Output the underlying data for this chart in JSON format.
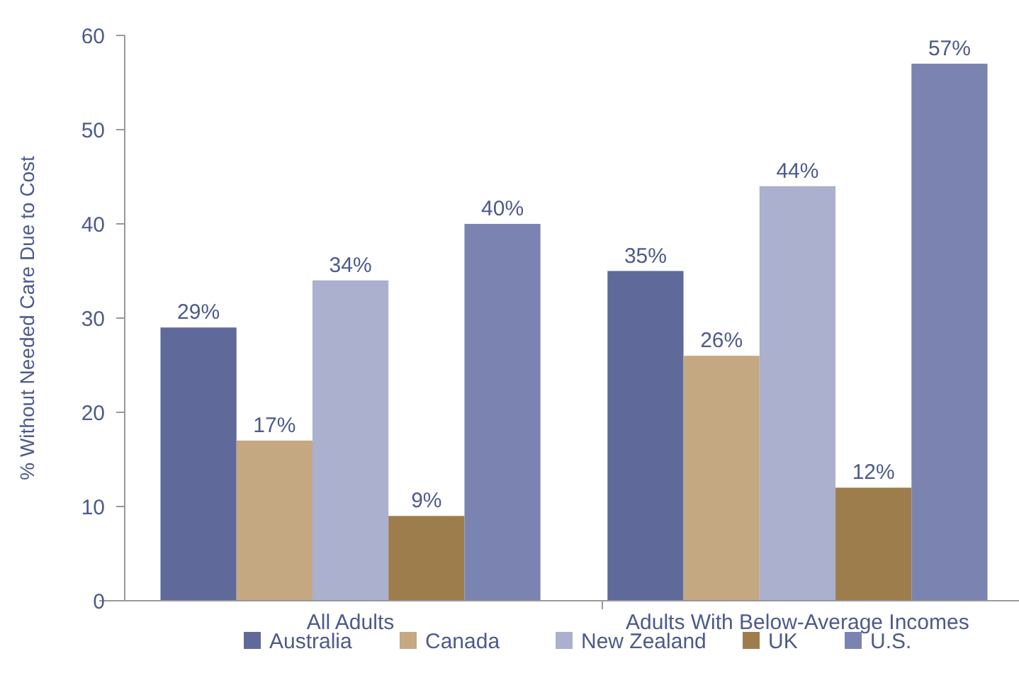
{
  "chart_data": {
    "type": "bar",
    "ylabel": "% Without Needed Care Due to Cost",
    "categories": [
      "All Adults",
      "Adults With Below-Average Incomes"
    ],
    "ylim": [
      0,
      60
    ],
    "yticks": [
      0,
      10,
      20,
      30,
      40,
      50,
      60
    ],
    "legend": "bottom",
    "grid": false,
    "series": [
      {
        "name": "Australia",
        "color": "#5f6a9b",
        "values": [
          29,
          35
        ],
        "value_labels": [
          "29%",
          "35%"
        ]
      },
      {
        "name": "Canada",
        "color": "#c4a882",
        "values": [
          17,
          26
        ],
        "value_labels": [
          "17%",
          "26%"
        ]
      },
      {
        "name": "New Zealand",
        "color": "#aab0cd",
        "values": [
          34,
          44
        ],
        "value_labels": [
          "34%",
          "44%"
        ]
      },
      {
        "name": "UK",
        "color": "#9e7d4d",
        "values": [
          9,
          12
        ],
        "value_labels": [
          "9%",
          "12%"
        ]
      },
      {
        "name": "U.S.",
        "color": "#7b84b0",
        "values": [
          40,
          57
        ],
        "value_labels": [
          "40%",
          "57%"
        ]
      }
    ]
  }
}
